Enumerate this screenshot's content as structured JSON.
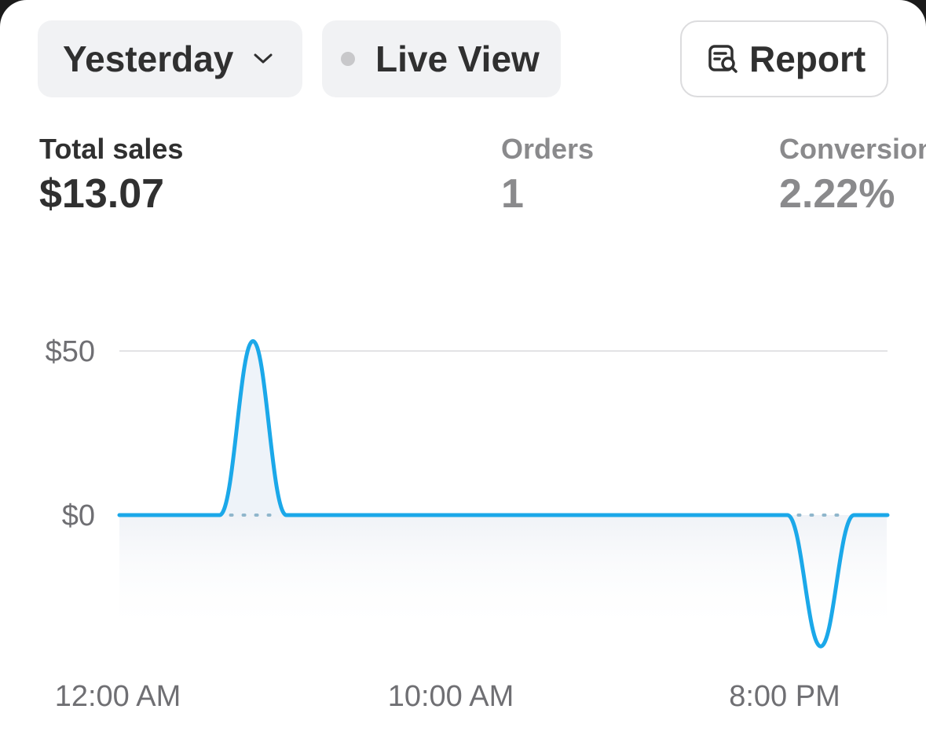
{
  "toolbar": {
    "date_range_label": "Yesterday",
    "live_view_label": "Live View",
    "report_label": "Report"
  },
  "metrics": {
    "total_sales": {
      "label": "Total sales",
      "value": "$13.07"
    },
    "orders": {
      "label": "Orders",
      "value": "1"
    },
    "conversion": {
      "label": "Conversion",
      "value": "2.22%"
    }
  },
  "icons": {
    "date_chevron": "chevron-down-icon",
    "live_dot": "live-status-dot-icon",
    "report": "report-search-icon"
  },
  "colors": {
    "series_line": "#1ba8e9",
    "live_dot": "#c8c8ca",
    "gridline": "#e3e3e5"
  },
  "chart_data": {
    "type": "line",
    "x_tick_labels": [
      "12:00 AM",
      "10:00 AM",
      "8:00 PM"
    ],
    "y_tick_labels": [
      "$50",
      "$0"
    ],
    "y_ticks": [
      50,
      0
    ],
    "ylim": [
      -40,
      50
    ],
    "x_range_hours": [
      0,
      23
    ],
    "series": [
      {
        "x": [
          0,
          3,
          4,
          5,
          6,
          20,
          21,
          22,
          23
        ],
        "y": [
          0,
          0,
          53,
          0,
          0,
          0,
          -40,
          0,
          0
        ]
      }
    ],
    "comparison_baseline_dotted": true,
    "grid": true,
    "legend": "none"
  }
}
